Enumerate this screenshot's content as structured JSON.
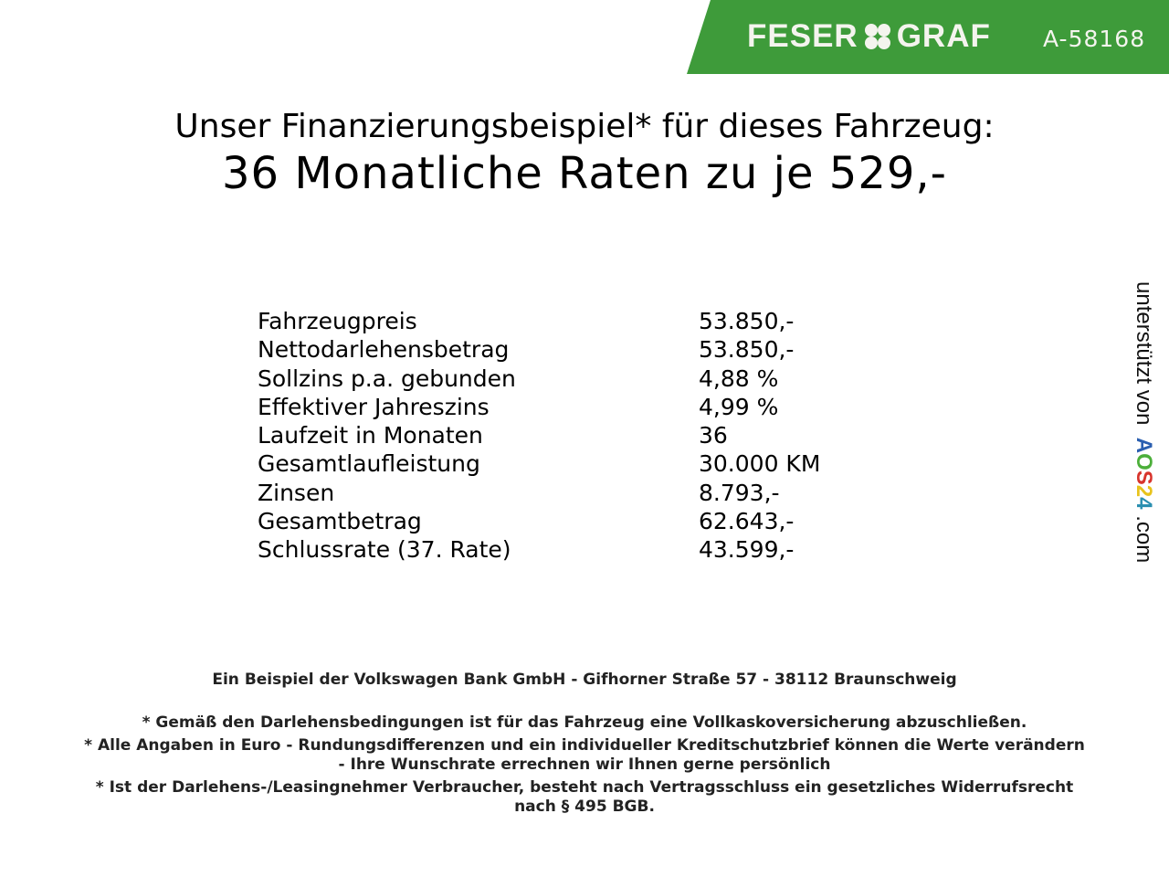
{
  "header": {
    "brand_left": "FESER",
    "brand_right": "GRAF",
    "reference": "A-58168",
    "brand_color": "#3e9b3a"
  },
  "title": {
    "line1": "Unser Finanzierungsbeispiel* für dieses Fahrzeug:",
    "line2": "36 Monatliche Raten zu je 529,-"
  },
  "rows": [
    {
      "label": "Fahrzeugpreis",
      "value": "53.850,-"
    },
    {
      "label": "Nettodarlehensbetrag",
      "value": "53.850,-"
    },
    {
      "label": "Sollzins p.a. gebunden",
      "value": "4,88 %"
    },
    {
      "label": "Effektiver Jahreszins",
      "value": "4,99 %"
    },
    {
      "label": "Laufzeit in Monaten",
      "value": "36"
    },
    {
      "label": "Gesamtlaufleistung",
      "value": "30.000 KM"
    },
    {
      "label": "Zinsen",
      "value": "8.793,-"
    },
    {
      "label": "Gesamtbetrag",
      "value": "62.643,-"
    },
    {
      "label": "Schlussrate (37. Rate)",
      "value": "43.599,-"
    }
  ],
  "side": {
    "prefix": "unterstützt von",
    "logo": "AOS24",
    "suffix": ".com",
    "logo_colors": [
      "#2b5fb0",
      "#4caf3a",
      "#d8342c",
      "#e8c31c",
      "#2b8fb0"
    ]
  },
  "footer": {
    "bank": "Ein Beispiel der Volkswagen Bank GmbH - Gifhorner Straße 57 - 38112 Braunschweig",
    "note1": "* Gemäß den Darlehensbedingungen ist für das Fahrzeug eine Vollkaskoversicherung abzuschließen.",
    "note2a": "* Alle Angaben in Euro - Rundungsdifferenzen und ein individueller Kreditschutzbrief können die Werte verändern",
    "note2b": "- Ihre Wunschrate errechnen wir Ihnen gerne persönlich",
    "note3a": "* Ist der Darlehens-/Leasingnehmer Verbraucher, besteht nach Vertragsschluss ein gesetzliches Widerrufsrecht",
    "note3b": "nach § 495 BGB."
  }
}
